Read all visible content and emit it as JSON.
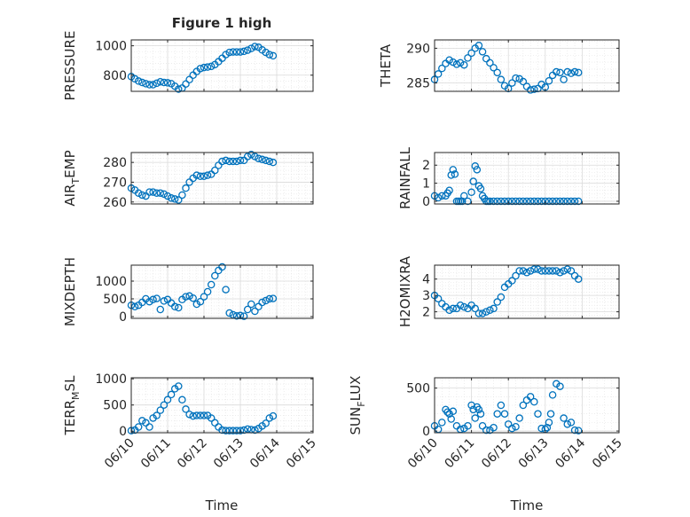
{
  "figure": {
    "title": "Figure 1 high",
    "xlabel": "Time",
    "x_tick_labels": [
      "06/10",
      "06/11",
      "06/12",
      "06/13",
      "06/14",
      "06/15"
    ]
  },
  "marker_color": "#0072BD",
  "chart_data": [
    {
      "type": "scatter",
      "ylabel": "PRESSURE",
      "ylim": [
        690,
        1040
      ],
      "yticks": [
        800,
        1000
      ],
      "xlim": [
        0,
        5
      ],
      "grid": true,
      "x": [
        0,
        0.1,
        0.2,
        0.3,
        0.4,
        0.5,
        0.6,
        0.7,
        0.8,
        0.9,
        1.0,
        1.1,
        1.2,
        1.3,
        1.4,
        1.5,
        1.6,
        1.7,
        1.8,
        1.9,
        2.0,
        2.1,
        2.2,
        2.3,
        2.4,
        2.5,
        2.6,
        2.7,
        2.8,
        2.9,
        3.0,
        3.1,
        3.2,
        3.3,
        3.4,
        3.5,
        3.6,
        3.7,
        3.8,
        3.9
      ],
      "y": [
        790,
        775,
        760,
        750,
        742,
        735,
        735,
        745,
        755,
        750,
        748,
        742,
        725,
        705,
        712,
        740,
        770,
        800,
        825,
        845,
        852,
        855,
        860,
        872,
        892,
        915,
        940,
        955,
        958,
        958,
        958,
        962,
        970,
        982,
        995,
        990,
        972,
        955,
        940,
        932
      ]
    },
    {
      "type": "scatter",
      "ylabel": "THETA",
      "ylim": [
        283.8,
        291.2
      ],
      "yticks": [
        285,
        290
      ],
      "xlim": [
        0,
        5
      ],
      "grid": true,
      "x": [
        0,
        0.1,
        0.2,
        0.3,
        0.4,
        0.5,
        0.6,
        0.7,
        0.8,
        0.9,
        1.0,
        1.1,
        1.2,
        1.3,
        1.4,
        1.5,
        1.6,
        1.7,
        1.8,
        1.9,
        2.0,
        2.1,
        2.2,
        2.3,
        2.4,
        2.5,
        2.6,
        2.7,
        2.8,
        2.9,
        3.0,
        3.1,
        3.2,
        3.3,
        3.4,
        3.5,
        3.6,
        3.7,
        3.8,
        3.9
      ],
      "y": [
        285.5,
        286.3,
        287.1,
        287.8,
        288.3,
        288.0,
        287.7,
        287.9,
        287.6,
        288.6,
        289.3,
        290.0,
        290.4,
        289.5,
        288.5,
        287.9,
        287.2,
        286.5,
        285.5,
        284.6,
        284.2,
        285.0,
        285.7,
        285.6,
        285.2,
        284.5,
        284.0,
        284.1,
        284.2,
        284.8,
        284.4,
        285.3,
        286.1,
        286.6,
        286.5,
        285.5,
        286.6,
        286.4,
        286.6,
        286.5
      ]
    },
    {
      "type": "scatter",
      "ylabel": "AIR_TEMP",
      "ylim": [
        259,
        285
      ],
      "yticks": [
        260,
        270,
        280
      ],
      "xlim": [
        0,
        5
      ],
      "grid": true,
      "x": [
        0,
        0.1,
        0.2,
        0.3,
        0.4,
        0.5,
        0.6,
        0.7,
        0.8,
        0.9,
        1.0,
        1.1,
        1.2,
        1.3,
        1.4,
        1.5,
        1.6,
        1.7,
        1.8,
        1.9,
        2.0,
        2.1,
        2.2,
        2.3,
        2.4,
        2.5,
        2.6,
        2.7,
        2.8,
        2.9,
        3.0,
        3.1,
        3.2,
        3.3,
        3.4,
        3.5,
        3.6,
        3.7,
        3.8,
        3.9
      ],
      "y": [
        267,
        266,
        264.5,
        263.5,
        263,
        265,
        265,
        264.5,
        264.5,
        264,
        263,
        262,
        261.5,
        261,
        263.5,
        267,
        270,
        272,
        273.5,
        273,
        273,
        273.5,
        274,
        276,
        278.5,
        280.5,
        281,
        280.5,
        280.5,
        280.5,
        281,
        281,
        283,
        284,
        283,
        282,
        281.5,
        281,
        280.5,
        280
      ]
    },
    {
      "type": "scatter",
      "ylabel": "RAINFALL",
      "ylim": [
        -0.15,
        2.7
      ],
      "yticks": [
        0,
        1,
        2
      ],
      "xlim": [
        0,
        5
      ],
      "grid": true,
      "x": [
        0,
        0.1,
        0.2,
        0.3,
        0.35,
        0.4,
        0.45,
        0.5,
        0.55,
        0.6,
        0.65,
        0.7,
        0.75,
        0.8,
        0.9,
        1.0,
        1.05,
        1.1,
        1.15,
        1.2,
        1.25,
        1.3,
        1.35,
        1.4,
        1.45,
        1.5,
        1.6,
        1.7,
        1.8,
        1.9,
        2.0,
        2.1,
        2.2,
        2.3,
        2.4,
        2.5,
        2.6,
        2.7,
        2.8,
        2.9,
        3.0,
        3.1,
        3.2,
        3.3,
        3.4,
        3.5,
        3.6,
        3.7,
        3.8,
        3.9
      ],
      "y": [
        0.3,
        0.2,
        0.3,
        0.3,
        0.45,
        0.6,
        1.45,
        1.75,
        1.5,
        0,
        0,
        0,
        0,
        0.3,
        0,
        0.5,
        1.1,
        1.95,
        1.75,
        0.85,
        0.7,
        0.3,
        0.15,
        0,
        0,
        0,
        0,
        0,
        0,
        0,
        0,
        0,
        0,
        0,
        0,
        0,
        0,
        0,
        0,
        0,
        0,
        0,
        0,
        0,
        0,
        0,
        0,
        0,
        0,
        0
      ]
    },
    {
      "type": "scatter",
      "ylabel": "MIXDEPTH",
      "ylim": [
        -50,
        1450
      ],
      "yticks": [
        0,
        500,
        1000
      ],
      "xlim": [
        0,
        5
      ],
      "grid": true,
      "x": [
        0,
        0.1,
        0.2,
        0.3,
        0.4,
        0.5,
        0.6,
        0.7,
        0.8,
        0.9,
        1.0,
        1.1,
        1.2,
        1.3,
        1.4,
        1.5,
        1.6,
        1.7,
        1.8,
        1.9,
        2.0,
        2.1,
        2.2,
        2.3,
        2.4,
        2.5,
        2.6,
        2.7,
        2.8,
        2.9,
        3.0,
        3.1,
        3.2,
        3.3,
        3.4,
        3.5,
        3.6,
        3.7,
        3.8,
        3.9
      ],
      "y": [
        320,
        280,
        320,
        400,
        500,
        420,
        480,
        510,
        200,
        440,
        480,
        380,
        280,
        250,
        480,
        560,
        580,
        520,
        350,
        420,
        560,
        700,
        900,
        1150,
        1300,
        1400,
        760,
        100,
        50,
        20,
        30,
        10,
        200,
        350,
        150,
        280,
        400,
        450,
        500,
        510
      ]
    },
    {
      "type": "scatter",
      "ylabel": "H2OMIXRA",
      "ylim": [
        1.6,
        4.85
      ],
      "yticks": [
        2,
        3,
        4
      ],
      "xlim": [
        0,
        5
      ],
      "grid": true,
      "x": [
        0,
        0.1,
        0.2,
        0.3,
        0.4,
        0.5,
        0.6,
        0.7,
        0.8,
        0.9,
        1.0,
        1.1,
        1.2,
        1.3,
        1.4,
        1.5,
        1.6,
        1.7,
        1.8,
        1.9,
        2.0,
        2.1,
        2.2,
        2.3,
        2.4,
        2.5,
        2.6,
        2.7,
        2.8,
        2.9,
        3.0,
        3.1,
        3.2,
        3.3,
        3.4,
        3.5,
        3.6,
        3.7,
        3.8,
        3.9
      ],
      "y": [
        3.0,
        2.8,
        2.5,
        2.3,
        2.1,
        2.2,
        2.2,
        2.4,
        2.3,
        2.2,
        2.4,
        2.2,
        1.9,
        1.9,
        2.0,
        2.1,
        2.2,
        2.6,
        2.9,
        3.5,
        3.7,
        3.9,
        4.2,
        4.5,
        4.5,
        4.4,
        4.5,
        4.6,
        4.6,
        4.5,
        4.5,
        4.5,
        4.5,
        4.5,
        4.4,
        4.5,
        4.6,
        4.5,
        4.2,
        4.0
      ]
    },
    {
      "type": "scatter",
      "ylabel": "TERR_MSL",
      "ylim": [
        -30,
        1020
      ],
      "yticks": [
        0,
        500,
        1000
      ],
      "xlim": [
        0,
        5
      ],
      "grid": true,
      "x": [
        0,
        0.1,
        0.2,
        0.3,
        0.4,
        0.5,
        0.6,
        0.7,
        0.8,
        0.9,
        1.0,
        1.1,
        1.2,
        1.3,
        1.4,
        1.5,
        1.6,
        1.7,
        1.8,
        1.9,
        2.0,
        2.1,
        2.2,
        2.3,
        2.4,
        2.5,
        2.6,
        2.7,
        2.8,
        2.9,
        3.0,
        3.1,
        3.2,
        3.3,
        3.4,
        3.5,
        3.6,
        3.7,
        3.8,
        3.9
      ],
      "y": [
        10,
        20,
        80,
        200,
        160,
        80,
        250,
        300,
        400,
        500,
        600,
        700,
        810,
        860,
        600,
        420,
        320,
        290,
        300,
        300,
        300,
        300,
        250,
        160,
        80,
        20,
        10,
        10,
        10,
        10,
        10,
        20,
        40,
        30,
        20,
        50,
        100,
        150,
        250,
        290
      ]
    },
    {
      "type": "scatter",
      "ylabel": "SUN_FLUX",
      "ylim": [
        -20,
        620
      ],
      "yticks": [
        0,
        500
      ],
      "xlim": [
        0,
        5
      ],
      "grid": true,
      "x": [
        0,
        0.1,
        0.2,
        0.3,
        0.35,
        0.4,
        0.45,
        0.5,
        0.6,
        0.7,
        0.8,
        0.9,
        1.0,
        1.05,
        1.1,
        1.15,
        1.2,
        1.25,
        1.3,
        1.4,
        1.5,
        1.6,
        1.7,
        1.8,
        1.9,
        2.0,
        2.1,
        2.2,
        2.3,
        2.4,
        2.5,
        2.6,
        2.7,
        2.8,
        2.9,
        3.0,
        3.05,
        3.1,
        3.15,
        3.2,
        3.3,
        3.4,
        3.5,
        3.6,
        3.7,
        3.8,
        3.9
      ],
      "y": [
        60,
        20,
        100,
        250,
        220,
        200,
        140,
        230,
        60,
        20,
        30,
        60,
        300,
        250,
        150,
        280,
        250,
        200,
        60,
        10,
        10,
        40,
        200,
        300,
        200,
        80,
        30,
        50,
        150,
        300,
        360,
        400,
        340,
        200,
        30,
        20,
        40,
        100,
        200,
        420,
        550,
        520,
        150,
        80,
        100,
        10,
        5
      ]
    }
  ]
}
